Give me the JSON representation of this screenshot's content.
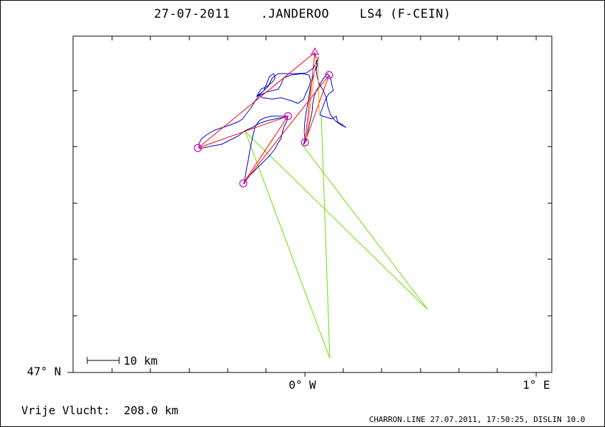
{
  "header": {
    "title": "27-07-2011    .JANDEROO    LS4 (F-CEIN)"
  },
  "axes": {
    "lat_label": "47° N",
    "lon0_label": "0° W",
    "lon1_label": "1° E"
  },
  "scale_bar": {
    "label": "10 km"
  },
  "footer": {
    "distance": "Vrije Vlucht:  208.0 km",
    "credit": "CHARRON.LINE 27.07.2011, 17:50:25, DISLIN 10.0"
  },
  "colors": {
    "track": "#0000cc",
    "task": "#ff0000",
    "extra": "#66dd00",
    "turnpoint": "#cc00cc",
    "orange": "#ff9900"
  }
}
